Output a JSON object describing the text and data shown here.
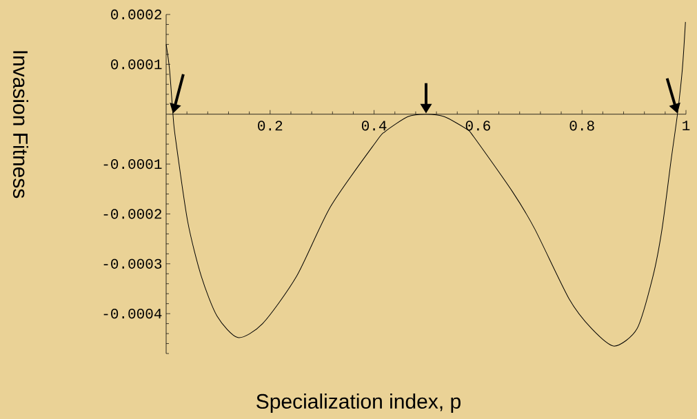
{
  "chart_data": {
    "type": "line",
    "xlabel": "Specialization index, p",
    "ylabel": "Invasion Fitness",
    "xlim": [
      0,
      1
    ],
    "ylim": [
      -0.00048,
      0.0002
    ],
    "xticks": [
      0.2,
      0.4,
      0.6,
      0.8,
      1
    ],
    "yticks": [
      0.0002,
      0.0001,
      -0.0001,
      -0.0002,
      -0.0003,
      -0.0004
    ],
    "series": [
      {
        "color": "#000000",
        "x": [
          0,
          0.0065,
          0.0131,
          0.0175,
          0.0414,
          0.0676,
          0.098,
          0.138,
          0.1855,
          0.251,
          0.3165,
          0.404,
          0.421,
          0.465,
          0.5,
          0.535,
          0.578,
          0.5915,
          0.666,
          0.709,
          0.775,
          0.8186,
          0.862,
          0.906,
          0.9365,
          0.954,
          0.971,
          0.9836,
          0.993,
          0.999
        ],
        "values": [
          0.00014,
          9e-05,
          0,
          -4.5e-05,
          -0.000215,
          -0.000325,
          -0.000405,
          -0.000448,
          -0.00042,
          -0.000325,
          -0.000185,
          -5.5e-05,
          -3.5e-05,
          -5e-06,
          0,
          -5e-06,
          -3e-05,
          -4.5e-05,
          -0.000155,
          -0.00023,
          -0.00037,
          -0.00043,
          -0.000465,
          -0.00043,
          -0.000325,
          -0.00023,
          -9.5e-05,
          0,
          9e-05,
          0.000185
        ]
      }
    ]
  }
}
